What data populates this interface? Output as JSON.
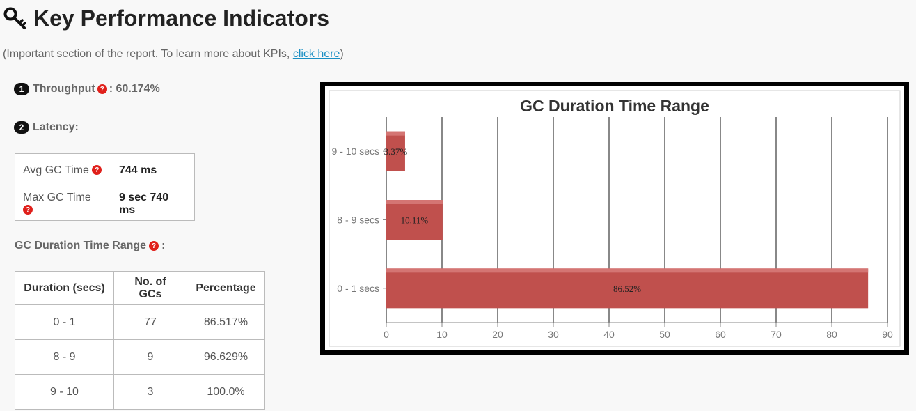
{
  "header": {
    "title": "Key Performance Indicators",
    "subtitle_prefix": "(Important section of the report. To learn more about KPIs, ",
    "subtitle_link": "click here",
    "subtitle_suffix": ")"
  },
  "throughput": {
    "badge": "1",
    "label": "Throughput",
    "value": ": 60.174%"
  },
  "latency": {
    "badge": "2",
    "label": "Latency:",
    "rows": [
      {
        "label": "Avg GC Time",
        "value": "744 ms"
      },
      {
        "label": "Max GC Time",
        "value": "9 sec 740 ms"
      }
    ]
  },
  "duration_section": {
    "title": "GC Duration Time Range",
    "suffix": ":",
    "headers": [
      "Duration (secs)",
      "No. of GCs",
      "Percentage"
    ],
    "rows": [
      [
        "0 - 1",
        "77",
        "86.517%"
      ],
      [
        "8 - 9",
        "9",
        "96.629%"
      ],
      [
        "9 - 10",
        "3",
        "100.0%"
      ]
    ]
  },
  "chart_data": {
    "type": "bar",
    "orientation": "horizontal",
    "title": "GC Duration Time Range",
    "categories": [
      "0 - 1 secs",
      "8 - 9 secs",
      "9 - 10 secs"
    ],
    "values": [
      86.52,
      10.11,
      3.37
    ],
    "data_labels": [
      "86.52%",
      "10.11%",
      "3.37%"
    ],
    "xlim": [
      0,
      90
    ],
    "xticks": [
      0,
      10,
      20,
      30,
      40,
      50,
      60,
      70,
      80,
      90
    ],
    "grid": true,
    "bar_color": "#c0504d"
  },
  "colors": {
    "accent_link": "#1a8fc4",
    "help_icon": "#e0201b"
  }
}
